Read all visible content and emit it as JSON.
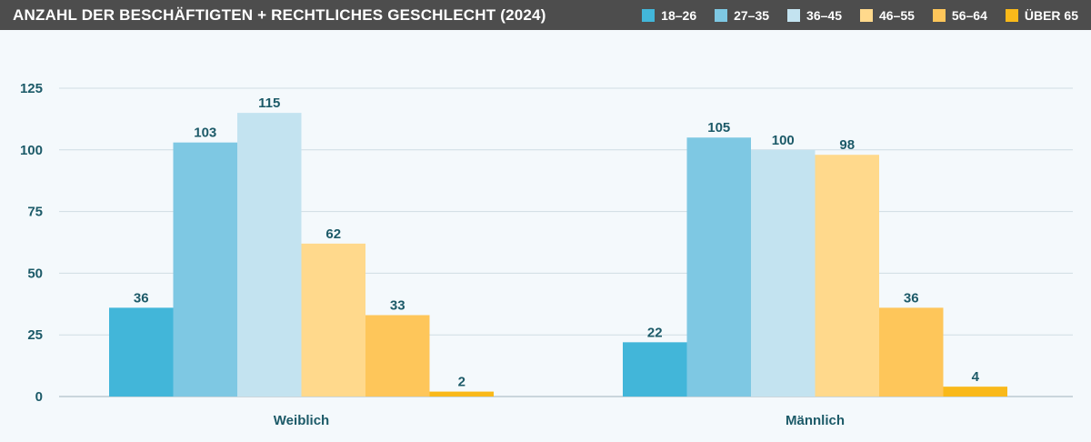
{
  "chart_data": {
    "type": "bar",
    "title": "ANZAHL DER BESCHÄFTIGTEN + RECHTLICHES GESCHLECHT (2024)",
    "categories": [
      "Weiblich",
      "Männlich"
    ],
    "series": [
      {
        "name": "18–26",
        "color": "#42b6d9",
        "values": [
          36,
          22
        ]
      },
      {
        "name": "27–35",
        "color": "#7ec8e3",
        "values": [
          103,
          105
        ]
      },
      {
        "name": "36–45",
        "color": "#c3e3f0",
        "values": [
          115,
          100
        ]
      },
      {
        "name": "46–55",
        "color": "#ffd98c",
        "values": [
          62,
          98
        ]
      },
      {
        "name": "56–64",
        "color": "#fec65a",
        "values": [
          33,
          36
        ]
      },
      {
        "name": "ÜBER 65",
        "color": "#f9b91a",
        "values": [
          2,
          4
        ]
      }
    ],
    "yticks": [
      0,
      25,
      50,
      75,
      100,
      125
    ],
    "ylim": [
      0,
      125
    ],
    "xlabel": "",
    "ylabel": "",
    "grid": true,
    "legend": "top-right"
  }
}
